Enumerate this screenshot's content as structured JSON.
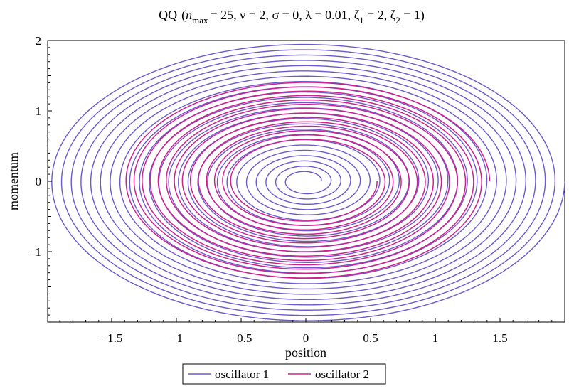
{
  "chart_data": {
    "type": "line",
    "title": {
      "prefix": "QQ",
      "n_symbol": "n",
      "n_subscript": "max",
      "n_value": "= 25, ",
      "nu_part": "ν = 2, ",
      "sigma_part": "σ = 0, ",
      "lambda_part": "λ = 0.01, ",
      "zeta_symbol": "ζ",
      "zeta1_sub": "1",
      "zeta1_value": " = 2, ",
      "zeta2_sub": "2",
      "zeta2_value": " = 1)"
    },
    "xlabel": "position",
    "ylabel": "momentum",
    "xlim": [
      -2.0,
      2.0
    ],
    "ylim": [
      -2.0,
      2.0
    ],
    "x_ticks": [
      {
        "value": -1.5,
        "label": "−1.5"
      },
      {
        "value": -1.0,
        "label": "−1"
      },
      {
        "value": -0.5,
        "label": "−0.5"
      },
      {
        "value": 0.0,
        "label": "0"
      },
      {
        "value": 0.5,
        "label": "0.5"
      },
      {
        "value": 1.0,
        "label": "1"
      },
      {
        "value": 1.5,
        "label": "1.5"
      }
    ],
    "y_ticks": [
      {
        "value": 2.0,
        "label": "2"
      },
      {
        "value": 1.0,
        "label": "1"
      },
      {
        "value": 0.0,
        "label": "0"
      },
      {
        "value": -1.0,
        "label": "−1"
      }
    ],
    "grid": false,
    "legend_position": "bottom-center",
    "series": [
      {
        "name": "oscillator 1",
        "color": "#6a5acd",
        "pattern": "expanding spiral",
        "radius_start": 0.12,
        "radius_end": 2.0,
        "turns": 25
      },
      {
        "name": "oscillator 2",
        "color": "#d0208c",
        "pattern": "contracting spiral",
        "radius_start": 1.42,
        "radius_end": 0.55,
        "turns": 14
      }
    ]
  }
}
